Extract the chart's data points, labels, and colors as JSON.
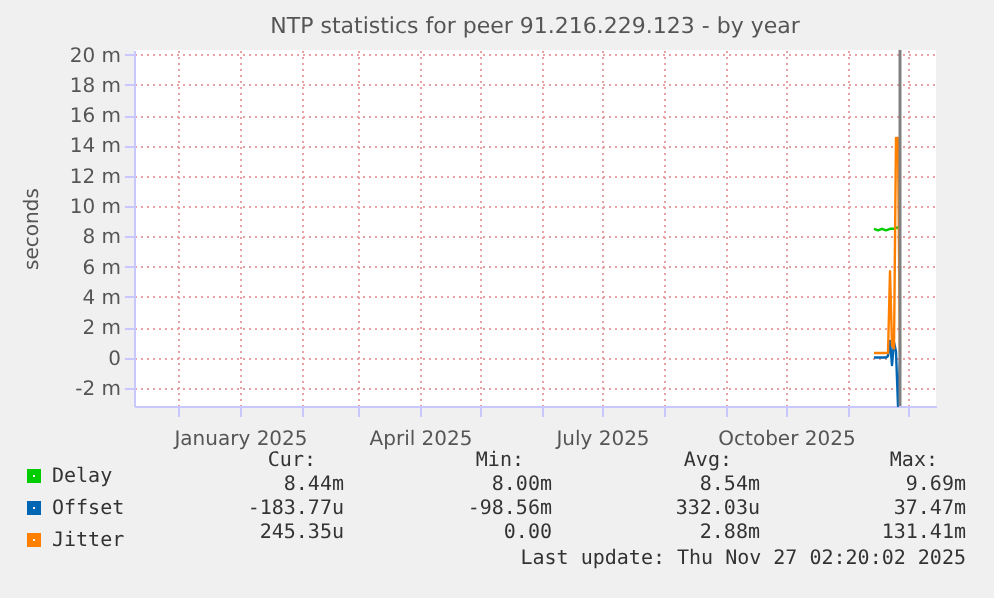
{
  "chart_data": {
    "type": "line",
    "title": "NTP statistics for peer 91.216.229.123 - by year",
    "ylabel": "seconds",
    "xlim": [
      "2024-11-09",
      "2025-12-15"
    ],
    "xticks": [
      {
        "value": "2024-12-01",
        "label": null
      },
      {
        "value": "2025-01-01",
        "label": "January 2025"
      },
      {
        "value": "2025-02-01",
        "label": null
      },
      {
        "value": "2025-03-01",
        "label": null
      },
      {
        "value": "2025-04-01",
        "label": "April 2025"
      },
      {
        "value": "2025-05-01",
        "label": null
      },
      {
        "value": "2025-06-01",
        "label": null
      },
      {
        "value": "2025-07-01",
        "label": "July 2025"
      },
      {
        "value": "2025-08-01",
        "label": null
      },
      {
        "value": "2025-09-01",
        "label": null
      },
      {
        "value": "2025-10-01",
        "label": "October 2025"
      },
      {
        "value": "2025-11-01",
        "label": null
      },
      {
        "value": "2025-12-01",
        "label": null
      }
    ],
    "ylim": [
      -3.2,
      20.3
    ],
    "yticks": [
      {
        "value": -2,
        "label": "-2 m"
      },
      0,
      {
        "value": 2,
        "label": "2 m"
      },
      {
        "value": 4,
        "label": "4 m"
      },
      {
        "value": 6,
        "label": "6 m"
      },
      {
        "value": 8,
        "label": "8 m"
      },
      {
        "value": 10,
        "label": "10 m"
      },
      {
        "value": 12,
        "label": "12 m"
      },
      {
        "value": 14,
        "label": "14 m"
      },
      {
        "value": 16,
        "label": "16 m"
      },
      {
        "value": 18,
        "label": "18 m"
      },
      {
        "value": 20,
        "label": "20 m"
      }
    ],
    "series": [
      {
        "name": "Delay",
        "color": "#00cc00",
        "x": [
          "2025-11-14",
          "2025-11-16",
          "2025-11-18",
          "2025-11-20",
          "2025-11-22",
          "2025-11-24",
          "2025-11-26",
          "2025-11-27"
        ],
        "values": [
          8.5,
          8.4,
          8.5,
          8.4,
          8.5,
          8.5,
          8.6,
          8.4
        ]
      },
      {
        "name": "Offset",
        "color": "#0066b3",
        "x": [
          "2025-11-14",
          "2025-11-20",
          "2025-11-21",
          "2025-11-22",
          "2025-11-23",
          "2025-11-24",
          "2025-11-25",
          "2025-11-26",
          "2025-11-27"
        ],
        "values": [
          0.0,
          0.0,
          0.1,
          1.1,
          -0.5,
          1.0,
          0.4,
          -3.2,
          -0.2
        ]
      },
      {
        "name": "Jitter",
        "color": "#ff8000",
        "x": [
          "2025-11-14",
          "2025-11-20",
          "2025-11-21",
          "2025-11-22",
          "2025-11-23",
          "2025-11-24",
          "2025-11-25",
          "2025-11-26",
          "2025-11-27"
        ],
        "values": [
          0.3,
          0.3,
          0.3,
          5.7,
          0.8,
          0.6,
          14.5,
          14.5,
          0.2
        ]
      }
    ],
    "ref_lines": [
      {
        "axis": "x",
        "value": "2025-11-27",
        "label": null,
        "color": "#808080"
      }
    ],
    "annotations": [
      "Cur:",
      "Min:",
      "Avg:",
      "Max:",
      "8.44m",
      "8.00m",
      "8.54m",
      "9.69m",
      "-183.77u",
      "-98.56m",
      "332.03u",
      "37.47m",
      "245.35u",
      "0.00",
      "2.88m",
      "131.41m",
      "Last update: Thu Nov 27 02:20:02 2025"
    ],
    "grid": true,
    "legend": "bottom left",
    "marker": "none",
    "line_style": "solid"
  }
}
